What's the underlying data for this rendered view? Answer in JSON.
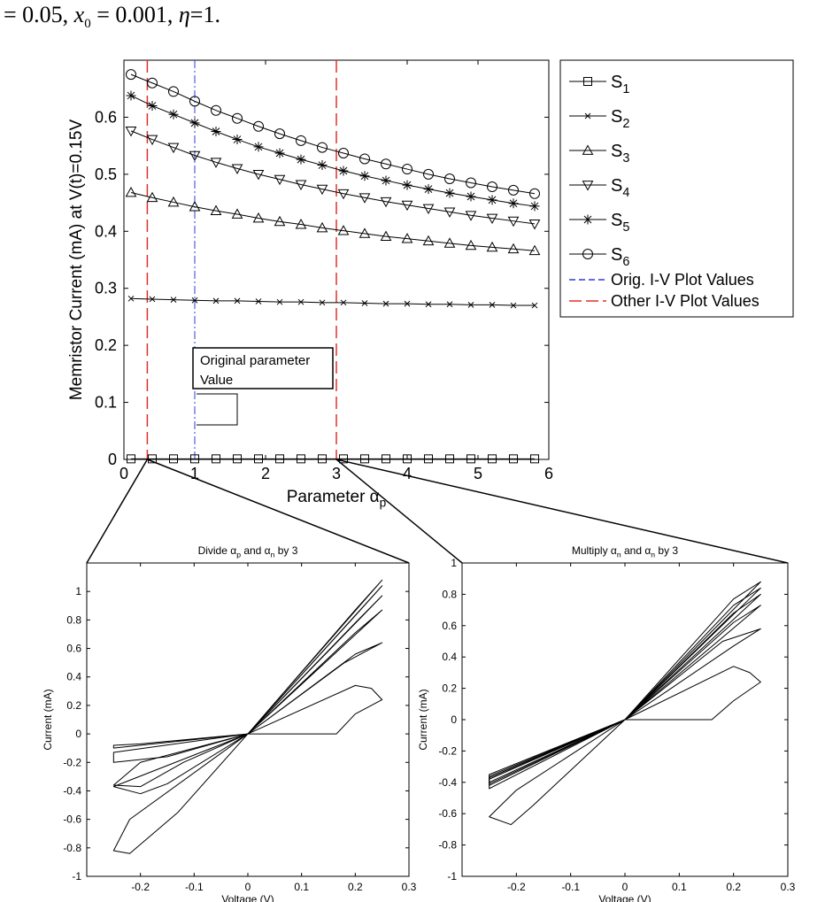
{
  "header": {
    "prefix": "= 0.05, ",
    "x_symbol": "x",
    "x_subscript": "0",
    "x_value": " = 0.001, ",
    "eta_symbol": "η",
    "eta_value": "=1."
  },
  "chart_data": [
    {
      "type": "line",
      "id": "main",
      "xlabel": "Parameter αp",
      "ylabel": "Memristor Current (mA) at V(t)=0.15V",
      "xlim": [
        0,
        6
      ],
      "ylim": [
        0,
        0.7
      ],
      "xticks": [
        0,
        1,
        2,
        3,
        4,
        5,
        6
      ],
      "yticks": [
        0,
        0.1,
        0.2,
        0.3,
        0.4,
        0.5,
        0.6
      ],
      "grid": false,
      "legend_position": "right-outside",
      "x": [
        0.1,
        0.4,
        0.7,
        1.0,
        1.3,
        1.6,
        1.9,
        2.2,
        2.5,
        2.8,
        3.1,
        3.4,
        3.7,
        4.0,
        4.3,
        4.6,
        4.9,
        5.2,
        5.5,
        5.8
      ],
      "series": [
        {
          "name": "S1",
          "marker": "square",
          "values": [
            0.001,
            0.001,
            0.001,
            0.001,
            0.001,
            0.001,
            0.001,
            0.001,
            0.001,
            0.001,
            0.001,
            0.001,
            0.001,
            0.001,
            0.001,
            0.001,
            0.001,
            0.001,
            0.001,
            0.001
          ]
        },
        {
          "name": "S2",
          "marker": "x",
          "values": [
            0.282,
            0.281,
            0.28,
            0.279,
            0.278,
            0.278,
            0.277,
            0.276,
            0.276,
            0.275,
            0.275,
            0.274,
            0.273,
            0.273,
            0.272,
            0.272,
            0.271,
            0.271,
            0.27,
            0.27
          ]
        },
        {
          "name": "S3",
          "marker": "triangle-up",
          "values": [
            0.468,
            0.459,
            0.451,
            0.443,
            0.436,
            0.43,
            0.423,
            0.417,
            0.412,
            0.406,
            0.401,
            0.396,
            0.391,
            0.387,
            0.383,
            0.379,
            0.375,
            0.372,
            0.369,
            0.366
          ]
        },
        {
          "name": "S4",
          "marker": "triangle-down",
          "values": [
            0.576,
            0.561,
            0.547,
            0.533,
            0.521,
            0.51,
            0.5,
            0.491,
            0.482,
            0.474,
            0.466,
            0.459,
            0.452,
            0.446,
            0.44,
            0.434,
            0.428,
            0.423,
            0.418,
            0.413
          ]
        },
        {
          "name": "S5",
          "marker": "star",
          "values": [
            0.638,
            0.62,
            0.605,
            0.59,
            0.575,
            0.561,
            0.548,
            0.537,
            0.526,
            0.516,
            0.506,
            0.497,
            0.489,
            0.481,
            0.474,
            0.467,
            0.461,
            0.455,
            0.449,
            0.444
          ]
        },
        {
          "name": "S6",
          "marker": "circle",
          "values": [
            0.675,
            0.66,
            0.645,
            0.628,
            0.612,
            0.598,
            0.584,
            0.571,
            0.559,
            0.547,
            0.537,
            0.527,
            0.518,
            0.509,
            0.5,
            0.492,
            0.485,
            0.478,
            0.472,
            0.466
          ]
        }
      ],
      "reference_lines": [
        {
          "legend": "Orig. I-V Plot Values",
          "color": "#2b3fd6",
          "style": "dash-dot",
          "x": [
            1
          ]
        },
        {
          "legend": "Other I-V Plot Values",
          "color": "#e0302a",
          "style": "dashed",
          "x": [
            0.33,
            3
          ]
        }
      ],
      "legend": {
        "entries": [
          {
            "base": "S",
            "sub": "1"
          },
          {
            "base": "S",
            "sub": "2"
          },
          {
            "base": "S",
            "sub": "3"
          },
          {
            "base": "S",
            "sub": "4"
          },
          {
            "base": "S",
            "sub": "5"
          },
          {
            "base": "S",
            "sub": "6"
          }
        ],
        "orig_label": "Orig. I-V Plot Values",
        "other_label": "Other I-V Plot Values"
      },
      "annotation": {
        "line1": "Original parameter",
        "line2": "Value"
      },
      "xlabel_parts": {
        "main": "Parameter α",
        "sub": "p"
      }
    },
    {
      "type": "line",
      "id": "left",
      "title_parts": {
        "t1": "Divide α",
        "s1": "p",
        "t2": " and α",
        "s2": "n",
        "t3": " by 3"
      },
      "xlabel": "Voltage (V)",
      "ylabel": "Current (mA)",
      "xlim": [
        -0.3,
        0.3
      ],
      "ylim": [
        -1,
        1.2
      ],
      "xticks": [
        -0.2,
        -0.1,
        0,
        0.1,
        0.2,
        0.3
      ],
      "yticks": [
        -1,
        -0.8,
        -0.6,
        -0.4,
        -0.2,
        0,
        0.2,
        0.4,
        0.6,
        0.8,
        1
      ],
      "loops": [
        [
          [
            0,
            0
          ],
          [
            0.165,
            0
          ],
          [
            0.2,
            0.14
          ],
          [
            0.25,
            0.24
          ],
          [
            0.23,
            0.32
          ],
          [
            0.2,
            0.34
          ],
          [
            0,
            0
          ],
          [
            -0.2,
            -0.07
          ],
          [
            -0.25,
            -0.08
          ],
          [
            -0.25,
            -0.1
          ],
          [
            0,
            0
          ]
        ],
        [
          [
            0,
            0
          ],
          [
            0.18,
            0.5
          ],
          [
            0.25,
            0.64
          ],
          [
            0.2,
            0.56
          ],
          [
            0,
            0
          ],
          [
            -0.15,
            -0.16
          ],
          [
            -0.25,
            -0.2
          ],
          [
            -0.25,
            -0.13
          ],
          [
            0,
            0
          ]
        ],
        [
          [
            0,
            0
          ],
          [
            0.25,
            0.87
          ],
          [
            0.2,
            0.71
          ],
          [
            0,
            0
          ],
          [
            -0.12,
            -0.2
          ],
          [
            -0.2,
            -0.37
          ],
          [
            -0.25,
            -0.36
          ],
          [
            -0.2,
            -0.2
          ],
          [
            0,
            0
          ]
        ],
        [
          [
            0,
            0
          ],
          [
            0.25,
            0.97
          ],
          [
            0.2,
            0.78
          ],
          [
            0,
            0
          ],
          [
            -0.15,
            -0.35
          ],
          [
            -0.2,
            -0.42
          ],
          [
            -0.25,
            -0.37
          ],
          [
            0,
            0
          ]
        ],
        [
          [
            0,
            0
          ],
          [
            0.25,
            1.04
          ],
          [
            0.2,
            0.83
          ],
          [
            0,
            0
          ],
          [
            -0.13,
            -0.55
          ],
          [
            -0.22,
            -0.84
          ],
          [
            -0.25,
            -0.82
          ],
          [
            -0.22,
            -0.6
          ],
          [
            0,
            0
          ]
        ],
        [
          [
            0,
            0
          ],
          [
            0.25,
            1.08
          ],
          [
            0.2,
            0.87
          ],
          [
            0,
            0
          ]
        ]
      ]
    },
    {
      "type": "line",
      "id": "right",
      "title_parts": {
        "t1": "Multiply α",
        "s1": "n",
        "t2": " and α",
        "s2": "n",
        "t3": " by 3"
      },
      "xlabel": "Voltage (V)",
      "ylabel": "Current (mA)",
      "xlim": [
        -0.3,
        0.3
      ],
      "ylim": [
        -1,
        1
      ],
      "xticks": [
        -0.2,
        -0.1,
        0,
        0.1,
        0.2,
        0.3
      ],
      "yticks": [
        -1,
        -0.8,
        -0.6,
        -0.4,
        -0.2,
        0,
        0.2,
        0.4,
        0.6,
        0.8,
        1
      ],
      "loops": [
        [
          [
            0,
            0
          ],
          [
            0.16,
            0
          ],
          [
            0.2,
            0.12
          ],
          [
            0.25,
            0.24
          ],
          [
            0.23,
            0.3
          ],
          [
            0.2,
            0.34
          ],
          [
            0,
            0
          ],
          [
            -0.17,
            -0.55
          ],
          [
            -0.21,
            -0.67
          ],
          [
            -0.25,
            -0.62
          ],
          [
            -0.2,
            -0.45
          ],
          [
            0,
            0
          ]
        ],
        [
          [
            0,
            0
          ],
          [
            0.18,
            0.5
          ],
          [
            0.25,
            0.58
          ],
          [
            0.2,
            0.47
          ],
          [
            0,
            0
          ],
          [
            -0.25,
            -0.44
          ],
          [
            -0.25,
            -0.38
          ],
          [
            0,
            0
          ]
        ],
        [
          [
            0,
            0
          ],
          [
            0.25,
            0.73
          ],
          [
            0.2,
            0.62
          ],
          [
            0,
            0
          ],
          [
            -0.25,
            -0.42
          ],
          [
            -0.25,
            -0.37
          ],
          [
            0,
            0
          ]
        ],
        [
          [
            0,
            0
          ],
          [
            0.25,
            0.8
          ],
          [
            0.2,
            0.68
          ],
          [
            0,
            0
          ],
          [
            -0.25,
            -0.41
          ],
          [
            -0.25,
            -0.36
          ],
          [
            0,
            0
          ]
        ],
        [
          [
            0,
            0
          ],
          [
            0.25,
            0.84
          ],
          [
            0.2,
            0.73
          ],
          [
            0,
            0
          ],
          [
            -0.25,
            -0.4
          ],
          [
            -0.25,
            -0.35
          ],
          [
            0,
            0
          ]
        ],
        [
          [
            0,
            0
          ],
          [
            0.25,
            0.88
          ],
          [
            0.2,
            0.77
          ],
          [
            0,
            0
          ],
          [
            -0.25,
            -0.37
          ],
          [
            0,
            0
          ]
        ]
      ]
    }
  ]
}
